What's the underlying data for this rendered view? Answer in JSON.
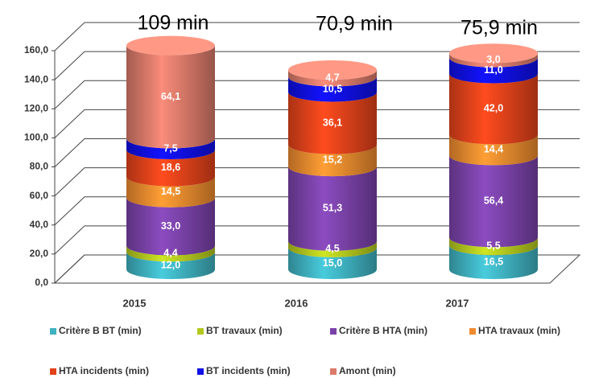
{
  "chart_data": {
    "type": "bar",
    "stacked": true,
    "categories": [
      "2015",
      "2016",
      "2017"
    ],
    "annotations": [
      "109 min",
      "70,9 min",
      "75,9 min"
    ],
    "ylim": [
      0,
      160
    ],
    "yticks": [
      {
        "value": 0,
        "label": "0,0"
      },
      {
        "value": 20,
        "label": "20,0"
      },
      {
        "value": 40,
        "label": "40,0"
      },
      {
        "value": 60,
        "label": "60,0"
      },
      {
        "value": 80,
        "label": "80,0"
      },
      {
        "value": 100,
        "label": "100,0"
      },
      {
        "value": 120,
        "label": "120,0"
      },
      {
        "value": 140,
        "label": "140,0"
      },
      {
        "value": 160,
        "label": "160,0"
      }
    ],
    "grid": true,
    "series": [
      {
        "name": "Critère B BT (min)",
        "color": "#3fb1c0",
        "values": [
          12.0,
          15.0,
          16.5
        ],
        "value_labels": [
          "12,0",
          "15,0",
          "16,5"
        ]
      },
      {
        "name": "BT travaux (min)",
        "color": "#b4c81e",
        "values": [
          4.4,
          4.5,
          5.5
        ],
        "value_labels": [
          "4,4",
          "4,5",
          "5,5"
        ]
      },
      {
        "name": "Critère B HTA (min)",
        "color": "#7a42a8",
        "values": [
          33.0,
          51.3,
          56.4
        ],
        "value_labels": [
          "33,0",
          "51,3",
          "56,4"
        ]
      },
      {
        "name": "HTA travaux (min)",
        "color": "#ee8a2e",
        "values": [
          14.5,
          15.2,
          14.4
        ],
        "value_labels": [
          "14,5",
          "15,2",
          "14,4"
        ]
      },
      {
        "name": "HTA incidents (min)",
        "color": "#e2421a",
        "values": [
          18.6,
          36.1,
          42.0
        ],
        "value_labels": [
          "18,6",
          "36,1",
          "42,0"
        ]
      },
      {
        "name": "BT incidents (min)",
        "color": "#1010e8",
        "values": [
          7.5,
          10.5,
          11.0
        ],
        "value_labels": [
          "7,5",
          "10,5",
          "11,0"
        ]
      },
      {
        "name": "Amont (min)",
        "color": "#d97a6a",
        "values": [
          64.1,
          4.7,
          3.0
        ],
        "value_labels": [
          "64,1",
          "4,7",
          "3,0"
        ]
      }
    ]
  }
}
